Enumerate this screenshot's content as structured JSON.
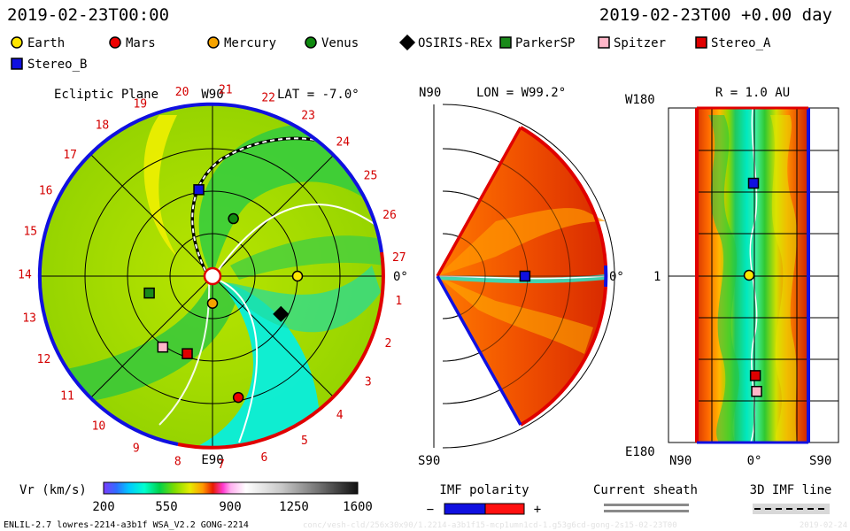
{
  "header": {
    "datetime_left": "2019-02-23T00:00",
    "datetime_right": "2019-02-23T00 +0.00 day"
  },
  "legend": [
    {
      "name": "Earth",
      "shape": "circle",
      "color": "#ffe600"
    },
    {
      "name": "Mars",
      "shape": "circle",
      "color": "#ee0000"
    },
    {
      "name": "Mercury",
      "shape": "circle",
      "color": "#f5a300"
    },
    {
      "name": "Venus",
      "shape": "circle",
      "color": "#108a10"
    },
    {
      "name": "OSIRIS-REx",
      "shape": "diamond",
      "color": "#000000"
    },
    {
      "name": "ParkerSP",
      "shape": "square",
      "color": "#1a8a1a"
    },
    {
      "name": "Spitzer",
      "shape": "square",
      "color": "#ffb6c8"
    },
    {
      "name": "Stereo_A",
      "shape": "square",
      "color": "#e00000"
    },
    {
      "name": "Stereo_B",
      "shape": "square",
      "color": "#1010e0"
    }
  ],
  "panels": {
    "ecliptic": {
      "title": "Ecliptic Plane",
      "lat_label": "LAT = -7.0°",
      "top_label": "W90",
      "bottom_label": "E90",
      "right_label": "0°",
      "ticks": [
        "1",
        "2",
        "3",
        "4",
        "5",
        "6",
        "7",
        "8",
        "9",
        "10",
        "11",
        "12",
        "13",
        "14",
        "15",
        "16",
        "17",
        "18",
        "19",
        "20",
        "21",
        "22",
        "23",
        "24",
        "25",
        "26",
        "27"
      ]
    },
    "meridional": {
      "title": "LON = W99.2°",
      "top_label": "N90",
      "bottom_label": "S90",
      "right_label": "0°"
    },
    "radial": {
      "title": "R = 1.0 AU",
      "left_top": "W180",
      "left_mid": "1",
      "left_bottom": "E180",
      "bottom_left": "N90",
      "bottom_mid": "0°",
      "bottom_right": "S90"
    }
  },
  "colorbar": {
    "label": "Vr (km/s)",
    "ticks": [
      "200",
      "550",
      "900",
      "1250",
      "1600"
    ],
    "range": [
      200,
      1600
    ]
  },
  "imf_polarity": {
    "label": "IMF polarity",
    "minus": "−",
    "plus": "+"
  },
  "current_sheath": {
    "label": "Current sheath"
  },
  "imf_3d": {
    "label": "3D IMF line"
  },
  "footer": {
    "model_info": "ENLIL-2.7 lowres-2214-a3b1f WSA_V2.2 GONG-2214",
    "run_info": "conc/vesh-cld/256x30x90/1.2214-a3b1f15-mcp1umn1cd-1.g53g6cd-gong-2s15-02-23T00",
    "date_stamp": "2019-02-24"
  },
  "chart_data": [
    {
      "type": "polar-heatmap",
      "title": "Ecliptic Plane",
      "quantity": "Vr (km/s)",
      "vrange": [
        200,
        1600
      ],
      "bodies": [
        {
          "name": "Earth",
          "lon_deg": 0,
          "r_au": 1.0
        },
        {
          "name": "Mars",
          "lon_deg": -78,
          "r_au": 1.46
        },
        {
          "name": "Mercury",
          "lon_deg": -90,
          "r_au": 0.32
        },
        {
          "name": "Venus",
          "lon_deg": 70,
          "r_au": 0.72
        },
        {
          "name": "OSIRIS-REx",
          "lon_deg": -29,
          "r_au": 0.92
        },
        {
          "name": "ParkerSP",
          "lon_deg": -165,
          "r_au": 0.77
        },
        {
          "name": "Spitzer",
          "lon_deg": -125,
          "r_au": 1.02
        },
        {
          "name": "Stereo_A",
          "lon_deg": -108,
          "r_au": 0.96
        },
        {
          "name": "Stereo_B",
          "lon_deg": 99,
          "r_au": 1.03
        }
      ]
    },
    {
      "type": "polar-heatmap",
      "title": "LON = W99.2°",
      "quantity": "Vr (km/s)",
      "lat_range": [
        -60,
        60
      ],
      "bodies": [
        {
          "name": "Stereo_B",
          "lat_deg": 0,
          "r_au": 1.03
        }
      ]
    },
    {
      "type": "heatmap",
      "title": "R = 1.0 AU",
      "quantity": "Vr (km/s)",
      "x_range": [
        "N90",
        "S90"
      ],
      "y_range": [
        "W180",
        "E180"
      ],
      "bodies": [
        {
          "name": "Stereo_B",
          "lat_deg": 0,
          "lon_deg": 99
        },
        {
          "name": "Earth",
          "lat_deg": 7,
          "lon_deg": 0
        },
        {
          "name": "Stereo_A",
          "lat_deg": -3,
          "lon_deg": -108
        },
        {
          "name": "Spitzer",
          "lat_deg": -5,
          "lon_deg": -125
        }
      ]
    }
  ]
}
